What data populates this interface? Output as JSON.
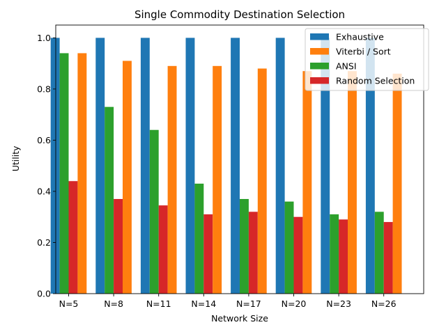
{
  "chart_data": {
    "type": "bar",
    "title": "Single Commodity Destination Selection",
    "xlabel": "Network Size",
    "ylabel": "Utility",
    "categories": [
      "N=5",
      "N=8",
      "N=11",
      "N=14",
      "N=17",
      "N=20",
      "N=23",
      "N=26"
    ],
    "ylim": [
      0,
      1.05
    ],
    "yticks": [
      "0.0",
      "0.2",
      "0.4",
      "0.6",
      "0.8",
      "1.0"
    ],
    "grid": false,
    "legend_position": "top-right",
    "series": [
      {
        "name": "Exhaustive",
        "color": "#1f77b4",
        "values": [
          1.0,
          1.0,
          1.0,
          1.0,
          1.0,
          1.0,
          1.0,
          1.0
        ]
      },
      {
        "name": "ANSI",
        "color": "#2ca02c",
        "values": [
          0.94,
          0.73,
          0.64,
          0.43,
          0.37,
          0.36,
          0.31,
          0.32
        ]
      },
      {
        "name": "Random Selection",
        "color": "#d62728",
        "values": [
          0.44,
          0.37,
          0.345,
          0.31,
          0.32,
          0.3,
          0.29,
          0.28
        ]
      },
      {
        "name": "Viterbi / Sort",
        "color": "#ff7f0e",
        "values": [
          0.94,
          0.91,
          0.89,
          0.89,
          0.88,
          0.87,
          0.87,
          0.86
        ]
      }
    ],
    "legend_order": [
      "Exhaustive",
      "Viterbi / Sort",
      "ANSI",
      "Random Selection"
    ]
  }
}
